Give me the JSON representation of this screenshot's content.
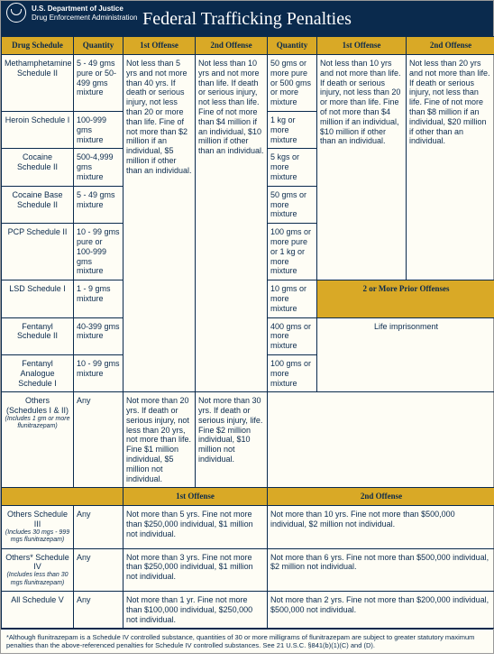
{
  "header": {
    "dept1": "U.S. Department of Justice",
    "dept2": "Drug Enforcement Administration",
    "title": "Federal Trafficking Penalties"
  },
  "cols": {
    "drug": "Drug Schedule",
    "qty": "Quantity",
    "off1": "1st Offense",
    "off2": "2nd Offense"
  },
  "rows": {
    "meth": {
      "drug": "Methamphetamine Schedule II",
      "q1": "5 - 49 gms pure or 50-499 gms mixture",
      "q2": "50 gms or more pure or 500 gms or more mixture"
    },
    "heroin": {
      "drug": "Heroin Schedule I",
      "q1": "100-999 gms mixture",
      "q2": "1 kg or more mixture"
    },
    "cocaine": {
      "drug": "Cocaine Schedule II",
      "q1": "500-4,999 gms mixture",
      "q2": "5 kgs or more mixture"
    },
    "cbase": {
      "drug": "Cocaine Base Schedule II",
      "q1": "5 - 49 gms mixture",
      "q2": "50 gms or more mixture"
    },
    "pcp": {
      "drug": "PCP Schedule II",
      "q1": "10 - 99 gms pure or 100-999 gms mixture",
      "q2": "100 gms or more pure or 1 kg or more mixture"
    },
    "lsd": {
      "drug": "LSD Schedule I",
      "q1": "1 - 9 gms mixture",
      "q2": "10 gms or more mixture"
    },
    "fent": {
      "drug": "Fentanyl Schedule II",
      "q1": "40-399 gms mixture",
      "q2": "400 gms or more mixture"
    },
    "fenta": {
      "drug": "Fentanyl Analogue Schedule I",
      "q1": "10 - 99 gms mixture",
      "q2": "100 gms or more mixture"
    },
    "others12": {
      "drug": "Others (Schedules I & II)",
      "sub": "(Includes 1 gm or more flunitrazepam)",
      "q": "Any"
    },
    "others3": {
      "drug": "Others Schedule III",
      "sub": "(Includes 30 mgs - 999 mgs flunitrazepam)",
      "q": "Any"
    },
    "others4": {
      "drug": "Others* Schedule IV",
      "sub": "(Includes less than 30 mgs flunitrazepam)",
      "q": "Any"
    },
    "allV": {
      "drug": "All Schedule V",
      "q": "Any"
    }
  },
  "pen": {
    "main1": "Not less than 5 yrs and not more than 40 yrs.  If death or serious injury, not less than 20 or more than life.  Fine of not more than $2 million if an individual, $5 million if other than an individual.",
    "main2": "Not less than 10 yrs and not more than life.  If death or serious injury, not less than life.  Fine of not more than $4 million if an individual, $10 million if other than an individual.",
    "main3": "Not less than 10 yrs and not more than life.  If death or serious injury, not less than 20 or more than life.  Fine of not more than $4 million if an individual, $10 million if other than an individual.",
    "main4": "Not less than 20 yrs and not more than life.  If death or serious injury, not less than life.  Fine of not more than $8 million if an individual, $20 million if other than an individual.",
    "prior_hdr": "2 or More Prior Offenses",
    "prior_txt": "Life imprisonment",
    "oth12_1": "Not more than 20 yrs.  If death or serious injury, not less than 20 yrs, not more than life.  Fine $1 million individual, $5 million not individual.",
    "oth12_2": "Not more than 30 yrs.  If death or serious injury, life.  Fine $2 million individual, $10 million not individual.",
    "oth3_1": "Not more than 5 yrs.  Fine not more than $250,000 individual, $1 million not individual.",
    "oth3_2": "Not more than 10 yrs.  Fine not more than $500,000 individual, $2 million not individual.",
    "oth4_1": "Not more than 3 yrs.  Fine not more than $250,000 individual, $1 million not individual.",
    "oth4_2": "Not more than 6 yrs.  Fine not more than $500,000 individual, $2 million not individual.",
    "allV_1": "Not more than 1 yr.  Fine not more than $100,000 individual, $250,000 not individual.",
    "allV_2": "Not more than 2 yrs.  Fine not more than $200,000 individual, $500,000 not individual."
  },
  "footnote": "*Although flunitrazepam is a Schedule IV controlled substance, quantities of 30 or more milligrams of flunitrazepam are subject to greater statutory maximum penalties than the above-referenced penalties for Schedule IV controlled substances.  See 21 U.S.C. §841(b)(1)(C) and (D).",
  "colors": {
    "navy": "#0a2a4d",
    "gold": "#d9a926",
    "cream": "#fefdf5"
  }
}
